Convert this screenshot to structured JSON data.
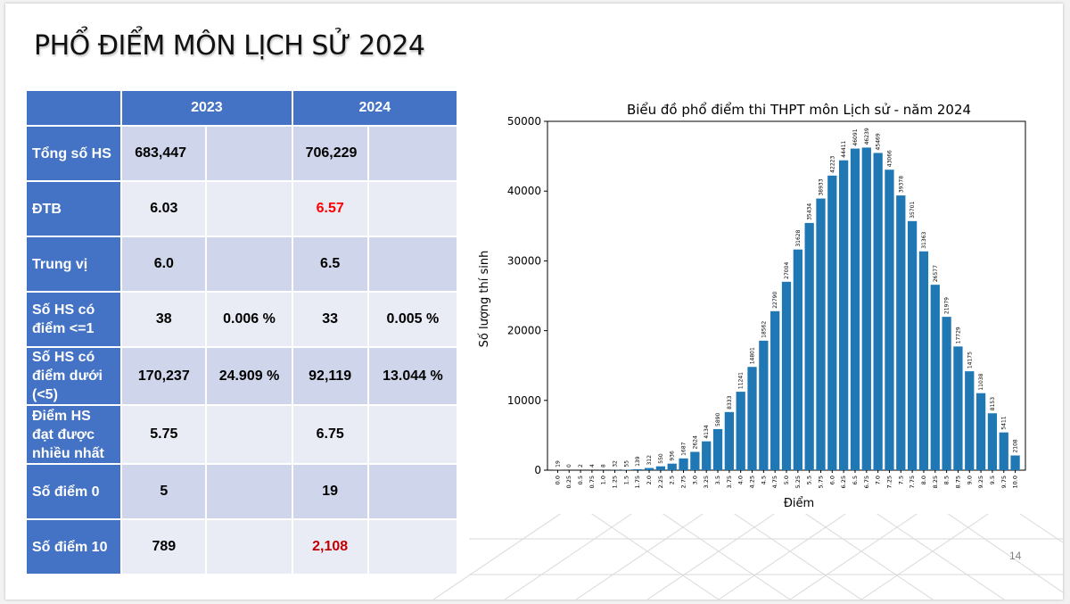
{
  "slide": {
    "title": "PHỔ ĐIỂM MÔN LỊCH SỬ 2024",
    "page_number": "14"
  },
  "table": {
    "headers": [
      "",
      "2023",
      "2024"
    ],
    "rows": [
      {
        "label": "Tổng số HS",
        "v2023": "683,447",
        "p2023": "",
        "v2024": "706,229",
        "p2024": ""
      },
      {
        "label": "ĐTB",
        "v2023": "6.03",
        "p2023": "",
        "v2024": "6.57",
        "p2024": ""
      },
      {
        "label": "Trung vị",
        "v2023": "6.0",
        "p2023": "",
        "v2024": "6.5",
        "p2024": ""
      },
      {
        "label": "Số HS có điểm <=1",
        "v2023": "38",
        "p2023": "0.006 %",
        "v2024": "33",
        "p2024": "0.005 %"
      },
      {
        "label": "Số HS có điểm dưới (<5)",
        "v2023": "170,237",
        "p2023": "24.909 %",
        "v2024": "92,119",
        "p2024": "13.044 %"
      },
      {
        "label": "Điểm HS đạt được nhiều nhất",
        "v2023": "5.75",
        "p2023": "",
        "v2024": "6.75",
        "p2024": ""
      },
      {
        "label": "Số điểm 0",
        "v2023": "5",
        "p2023": "",
        "v2024": "19",
        "p2024": ""
      },
      {
        "label": "Số điểm 10",
        "v2023": "789",
        "p2023": "",
        "v2024": "2,108",
        "p2024": ""
      }
    ]
  },
  "chart_data": {
    "type": "bar",
    "title": "Biểu đồ phổ điểm thi THPT môn Lịch sử - năm 2024",
    "xlabel": "Điểm",
    "ylabel": "Số lượng thí sinh",
    "ylim": [
      0,
      50000
    ],
    "yticks": [
      0,
      10000,
      20000,
      30000,
      40000,
      50000
    ],
    "bar_color": "#1f77b4",
    "categories": [
      "0.0",
      "0.25",
      "0.5",
      "0.75",
      "1.0",
      "1.25",
      "1.5",
      "1.75",
      "2.0",
      "2.25",
      "2.5",
      "2.75",
      "3.0",
      "3.25",
      "3.5",
      "3.75",
      "4.0",
      "4.25",
      "4.5",
      "4.75",
      "5.0",
      "5.25",
      "5.5",
      "5.75",
      "6.0",
      "6.25",
      "6.5",
      "6.75",
      "7.0",
      "7.25",
      "7.5",
      "7.75",
      "8.0",
      "8.25",
      "8.5",
      "8.75",
      "9.0",
      "9.25",
      "9.5",
      "9.75",
      "10.0"
    ],
    "values": [
      19,
      0,
      2,
      4,
      8,
      32,
      55,
      139,
      312,
      550,
      936,
      1687,
      2624,
      4134,
      5890,
      8333,
      11241,
      14801,
      18562,
      22790,
      27004,
      31628,
      35434,
      38933,
      42223,
      44411,
      46091,
      46239,
      45469,
      43066,
      39378,
      35701,
      31363,
      26577,
      21979,
      17729,
      14175,
      11038,
      8153,
      5411,
      2108
    ]
  }
}
